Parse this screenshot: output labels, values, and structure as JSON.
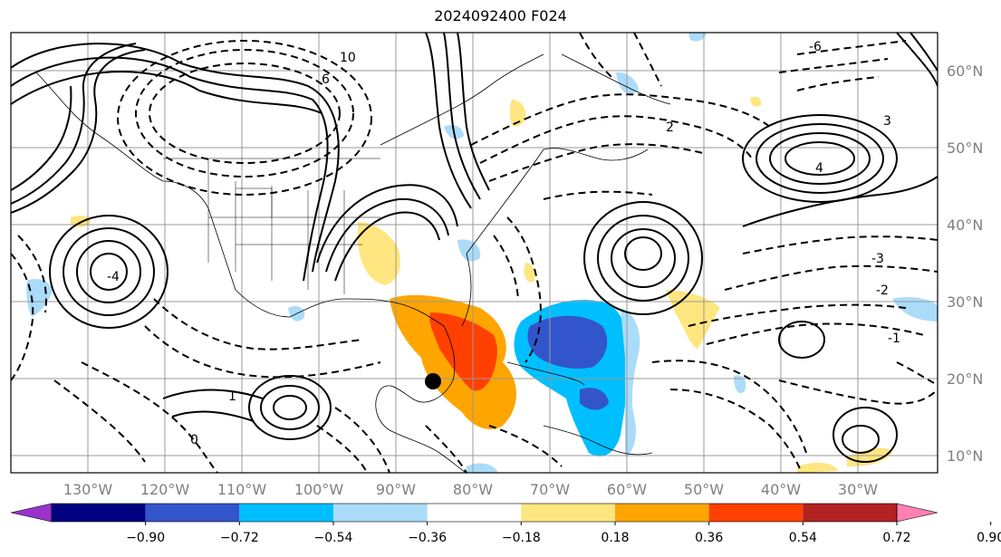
{
  "title": "2024092400 F024",
  "lon_ticks": [
    "130°W",
    "120°W",
    "110°W",
    "100°W",
    "90°W",
    "80°W",
    "70°W",
    "60°W",
    "50°W",
    "40°W",
    "30°W"
  ],
  "lat_ticks": [
    "60°N",
    "50°N",
    "40°N",
    "30°N",
    "20°N",
    "10°N"
  ],
  "colorbar": {
    "labels": [
      "−0.90",
      "−0.72",
      "−0.54",
      "−0.36",
      "−0.18",
      "0.18",
      "0.36",
      "0.54",
      "0.72",
      "0.90"
    ],
    "colors": [
      "#9933cc",
      "#000080",
      "#3355cc",
      "#00bfff",
      "#aadcfa",
      "#ffffff",
      "#ffe680",
      "#ffa500",
      "#ff4000",
      "#b22222",
      "#ff80b3"
    ]
  },
  "contour_labels": [
    {
      "text": "10"
    },
    {
      "text": "6"
    },
    {
      "text": "4"
    },
    {
      "text": "3"
    },
    {
      "text": "2"
    },
    {
      "text": "1"
    },
    {
      "text": "0"
    },
    {
      "text": "-1"
    },
    {
      "text": "-2"
    },
    {
      "text": "-3"
    },
    {
      "text": "-4"
    },
    {
      "text": "-6"
    }
  ],
  "storm_marker": "tropical-storm-center"
}
